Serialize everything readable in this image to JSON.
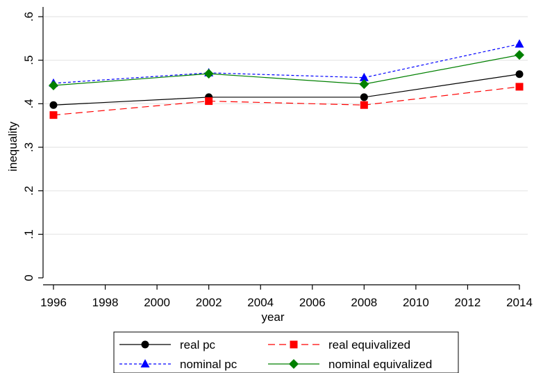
{
  "chart_data": {
    "type": "line",
    "title": "",
    "xlabel": "year",
    "ylabel": "inequality",
    "x": [
      1996,
      2002,
      2008,
      2014
    ],
    "xlim": [
      1996,
      2014
    ],
    "ylim": [
      0,
      0.6
    ],
    "xticks": [
      1996,
      1998,
      2000,
      2002,
      2004,
      2006,
      2008,
      2010,
      2012,
      2014
    ],
    "yticks": [
      0,
      0.1,
      0.2,
      0.3,
      0.4,
      0.5,
      0.6
    ],
    "ytick_labels": [
      "0",
      ".1",
      ".2",
      ".3",
      ".4",
      ".5",
      ".6"
    ],
    "grid": true,
    "legend_position": "bottom",
    "series": [
      {
        "name": "real pc",
        "values": [
          0.397,
          0.415,
          0.415,
          0.468
        ],
        "color": "#000000",
        "marker": "circle",
        "dash": "solid"
      },
      {
        "name": "real equivalized",
        "values": [
          0.374,
          0.406,
          0.397,
          0.439
        ],
        "color": "#ff0000",
        "marker": "square",
        "dash": "long-dash"
      },
      {
        "name": "nominal pc",
        "values": [
          0.447,
          0.471,
          0.46,
          0.537
        ],
        "color": "#0000ff",
        "marker": "triangle",
        "dash": "short-dash"
      },
      {
        "name": "nominal equivalized",
        "values": [
          0.442,
          0.469,
          0.445,
          0.512
        ],
        "color": "#008000",
        "marker": "diamond",
        "dash": "solid"
      }
    ]
  }
}
